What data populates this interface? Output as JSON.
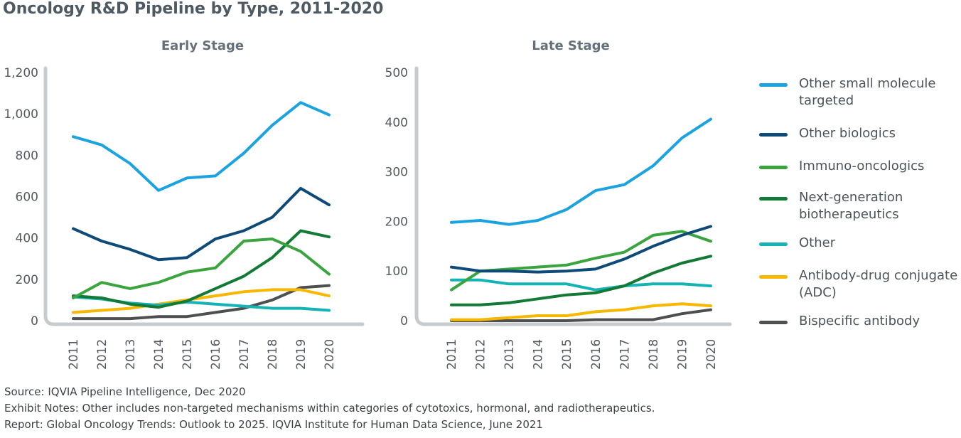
{
  "title": "Oncology R&D Pipeline by Type, 2011-2020",
  "colors": {
    "Other small molecule targeted": "#1ba3e0",
    "Other biologics": "#0d4a78",
    "Immuno-oncologics": "#3aa43f",
    "Next-generation biotherapeutics": "#137a36",
    "Other": "#14b3b5",
    "Antibody-drug conjugate (ADC)": "#f7b800",
    "Bispecific antibody": "#4d4f51",
    "axis": "#c8cbce"
  },
  "legend": [
    "Other small molecule targeted",
    "Other biologics",
    "Immuno-oncologics",
    "Next-generation biotherapeutics",
    "Other",
    "Antibody-drug conjugate (ADC)",
    "Bispecific antibody"
  ],
  "legend_labels": [
    "Other small molecule targeted",
    "Other biologics",
    " Immuno-oncologics",
    "Next-generation biotherapeutics",
    "Other",
    "Antibody-drug conjugate (ADC)",
    "Bispecific antibody"
  ],
  "notes": {
    "source": "Source: IQVIA Pipeline Intelligence, Dec 2020",
    "exhibit": "Exhibit Notes: Other includes non-targeted mechanisms within categories of cytotoxics, hormonal, and radiotherapeutics.",
    "report": "Report: Global Oncology Trends: Outlook to 2025. IQVIA Institute for Human Data Science, June 2021"
  },
  "chart_data": [
    {
      "type": "line",
      "title": "Early Stage",
      "xlabel": "",
      "ylabel": "",
      "categories": [
        "2011",
        "2012",
        "2013",
        "2014",
        "2015",
        "2016",
        "2017",
        "2018",
        "2019",
        "2020"
      ],
      "ylim": [
        0,
        1200
      ],
      "yticks": [
        0,
        200,
        400,
        600,
        800,
        1000,
        1200
      ],
      "ytick_labels": [
        "0",
        "200",
        "400",
        "600",
        "800",
        "1,000",
        "1,200"
      ],
      "grid": false,
      "series": [
        {
          "name": "Other small molecule targeted",
          "values": [
            890,
            850,
            760,
            630,
            690,
            700,
            810,
            945,
            1055,
            995
          ]
        },
        {
          "name": "Other biologics",
          "values": [
            445,
            385,
            345,
            295,
            305,
            395,
            435,
            500,
            640,
            560
          ]
        },
        {
          "name": "Immuno-oncologics",
          "values": [
            110,
            185,
            155,
            185,
            235,
            255,
            385,
            395,
            335,
            225
          ]
        },
        {
          "name": "Next-generation biotherapeutics",
          "values": [
            120,
            110,
            80,
            65,
            95,
            155,
            215,
            305,
            435,
            405
          ]
        },
        {
          "name": "Other",
          "values": [
            115,
            105,
            85,
            75,
            90,
            80,
            70,
            60,
            60,
            50
          ]
        },
        {
          "name": "Antibody-drug conjugate (ADC)",
          "values": [
            40,
            50,
            60,
            80,
            100,
            120,
            140,
            150,
            150,
            120
          ]
        },
        {
          "name": "Bispecific antibody",
          "values": [
            10,
            10,
            10,
            20,
            20,
            40,
            60,
            100,
            160,
            170
          ]
        }
      ]
    },
    {
      "type": "line",
      "title": "Late Stage",
      "xlabel": "",
      "ylabel": "",
      "categories": [
        "2011",
        "2012",
        "2013",
        "2014",
        "2015",
        "2016",
        "2017",
        "2018",
        "2019",
        "2020"
      ],
      "ylim": [
        0,
        500
      ],
      "yticks": [
        0,
        100,
        200,
        300,
        400,
        500
      ],
      "ytick_labels": [
        "0",
        "100",
        "200",
        "300",
        "400",
        "500"
      ],
      "grid": false,
      "series": [
        {
          "name": "Other small molecule targeted",
          "values": [
            198,
            202,
            194,
            202,
            224,
            262,
            274,
            312,
            368,
            406
          ]
        },
        {
          "name": "Other biologics",
          "values": [
            108,
            100,
            100,
            98,
            100,
            104,
            124,
            150,
            172,
            190
          ]
        },
        {
          "name": "Immuno-oncologics",
          "values": [
            62,
            100,
            104,
            108,
            112,
            126,
            138,
            172,
            180,
            160
          ]
        },
        {
          "name": "Next-generation biotherapeutics",
          "values": [
            32,
            32,
            36,
            44,
            52,
            56,
            70,
            96,
            116,
            130
          ]
        },
        {
          "name": "Other",
          "values": [
            82,
            82,
            74,
            74,
            74,
            62,
            70,
            74,
            74,
            70
          ]
        },
        {
          "name": "Antibody-drug conjugate (ADC)",
          "values": [
            2,
            2,
            6,
            10,
            10,
            18,
            22,
            30,
            34,
            30
          ]
        },
        {
          "name": "Bispecific antibody",
          "values": [
            0,
            0,
            0,
            0,
            0,
            2,
            2,
            2,
            14,
            22
          ]
        }
      ]
    }
  ]
}
